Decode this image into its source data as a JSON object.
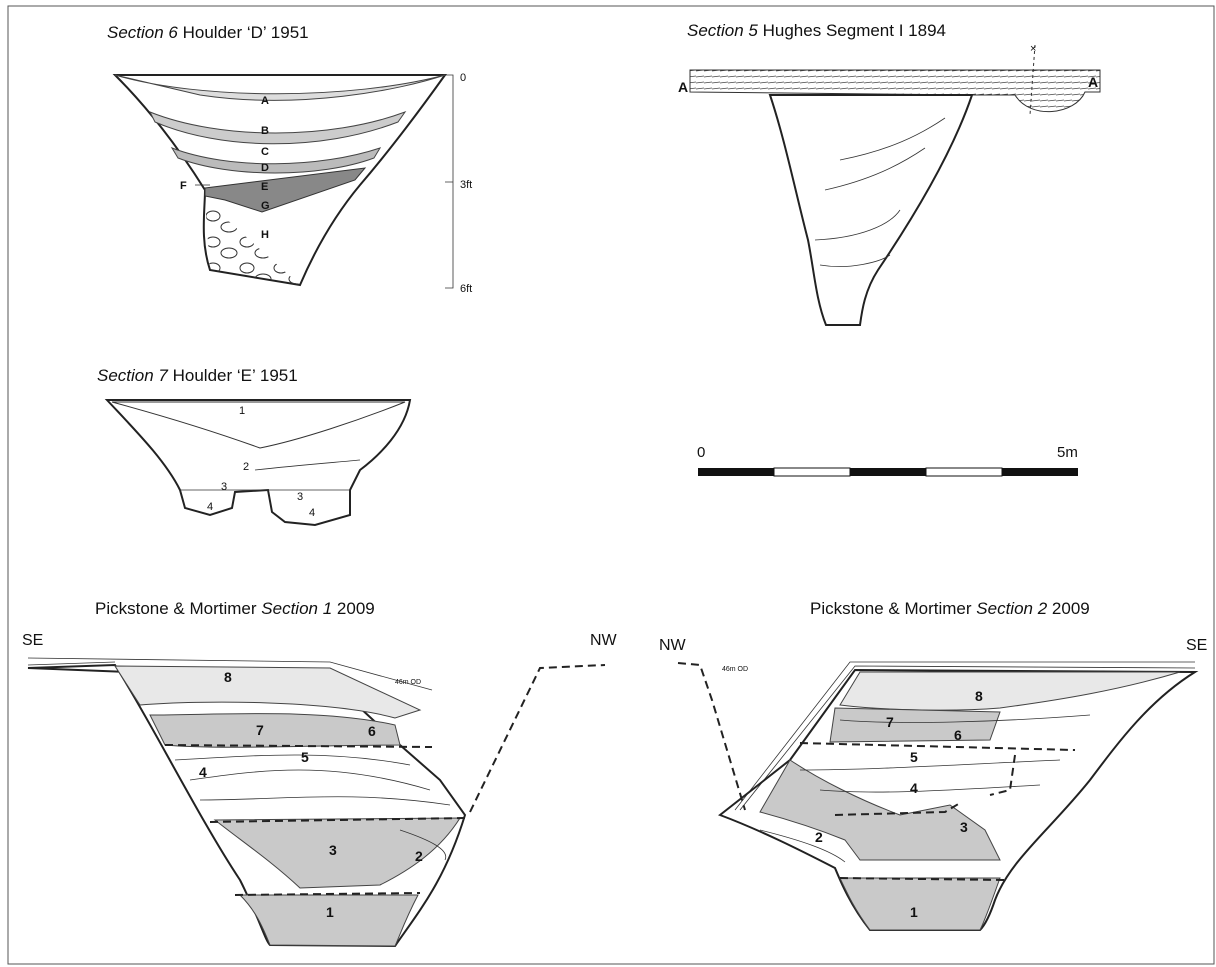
{
  "sections": [
    {
      "title_italic": "Section 6",
      "title_rest": "Houlder ‘D’ 1951",
      "layers": [
        "A",
        "B",
        "C",
        "D",
        "E",
        "F",
        "G",
        "H"
      ],
      "depth_scale": [
        "0",
        "3ft",
        "6ft"
      ]
    },
    {
      "title_italic": "Section 5",
      "title_rest": "Hughes Segment I 1894",
      "markers": [
        "A",
        "A"
      ]
    },
    {
      "title_italic": "Section 7",
      "title_rest": "Houlder ‘E’ 1951",
      "layers": [
        "1",
        "2",
        "3",
        "3",
        "4",
        "4"
      ]
    },
    {
      "title_pre": "Pickstone & Mortimer",
      "title_italic": "Section 1",
      "title_post": "2009",
      "orientation": [
        "SE",
        "NW"
      ],
      "datum": "46m OD",
      "layers": [
        "8",
        "7",
        "6",
        "5",
        "4",
        "3",
        "2",
        "1"
      ]
    },
    {
      "title_pre": "Pickstone & Mortimer",
      "title_italic": "Section 2",
      "title_post": "2009",
      "orientation": [
        "NW",
        "SE"
      ],
      "datum": "46m OD",
      "layers": [
        "8",
        "7",
        "6",
        "5",
        "4",
        "3",
        "2",
        "1"
      ]
    }
  ],
  "scale_bar": {
    "labels": [
      "0",
      "5m"
    ]
  }
}
